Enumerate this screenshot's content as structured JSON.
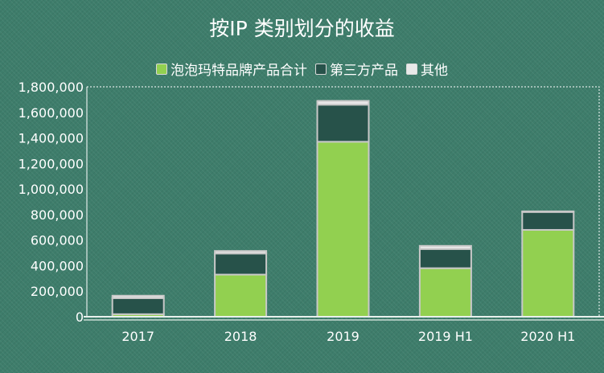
{
  "chart_data": {
    "type": "bar",
    "stacked": true,
    "title": "按IP 类别划分的收益",
    "categories": [
      "2017",
      "2018",
      "2019",
      "2019 H1",
      "2020 H1"
    ],
    "series": [
      {
        "name": "泡泡玛特品牌产品合计",
        "color": "#92d050",
        "values": [
          20000,
          330000,
          1370000,
          380000,
          680000
        ]
      },
      {
        "name": "第三方产品",
        "color": "#27524a",
        "values": [
          125000,
          165000,
          290000,
          150000,
          140000
        ]
      },
      {
        "name": "其他",
        "color": "#e8e8e8",
        "values": [
          20000,
          20000,
          30000,
          25000,
          5000
        ]
      }
    ],
    "ylim": [
      0,
      1800000
    ],
    "yticks": [
      "0",
      "200,000",
      "400,000",
      "600,000",
      "800,000",
      "1,000,000",
      "1,200,000",
      "1,400,000",
      "1,600,000",
      "1,800,000"
    ],
    "grid": false,
    "legend_position": "top"
  }
}
